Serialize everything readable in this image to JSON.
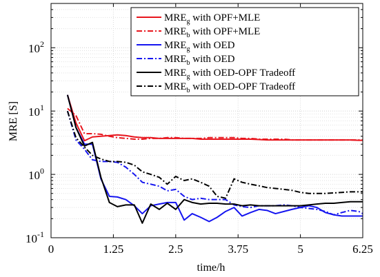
{
  "chart_data": {
    "type": "line",
    "xlabel": "time/h",
    "ylabel": "MRE [S]",
    "x_ticks": [
      0,
      1.25,
      2.5,
      3.75,
      5,
      6.25
    ],
    "x_tick_labels": [
      "0",
      "1.25",
      "2.5",
      "3.75",
      "5",
      "6.25"
    ],
    "xlim": [
      0,
      6.25
    ],
    "y_scale": "log",
    "ylim": [
      0.1,
      500
    ],
    "y_ticks": [
      {
        "base": "10",
        "exp": "-1",
        "value": 0.1
      },
      {
        "base": "10",
        "exp": "0",
        "value": 1
      },
      {
        "base": "10",
        "exp": "1",
        "value": 10
      },
      {
        "base": "10",
        "exp": "2",
        "value": 100
      }
    ],
    "grid": true,
    "legend_position": "top-right",
    "series": [
      {
        "name": "MRE_g with OPF+MLE",
        "label_main": "MRE",
        "label_sub": "g",
        "label_rest": " with OPF+MLE",
        "color": "#e8141c",
        "dash": "solid",
        "x": [
          0.33,
          0.5,
          0.67,
          0.83,
          1.0,
          1.17,
          1.33,
          1.5,
          1.67,
          1.83,
          2.0,
          2.17,
          2.33,
          2.5,
          2.67,
          2.83,
          3.0,
          3.17,
          3.33,
          3.5,
          3.67,
          3.83,
          4.0,
          4.17,
          4.33,
          4.5,
          4.67,
          4.83,
          5.0,
          5.17,
          5.33,
          5.5,
          5.67,
          5.83,
          6.0,
          6.17,
          6.25
        ],
        "y": [
          18,
          6.5,
          3.4,
          3.9,
          4.0,
          4.1,
          4.2,
          4.1,
          3.9,
          3.8,
          3.8,
          3.7,
          3.7,
          3.7,
          3.7,
          3.7,
          3.6,
          3.6,
          3.6,
          3.6,
          3.6,
          3.6,
          3.6,
          3.55,
          3.5,
          3.5,
          3.5,
          3.5,
          3.5,
          3.5,
          3.5,
          3.5,
          3.5,
          3.5,
          3.5,
          3.45,
          3.45
        ]
      },
      {
        "name": "MRE_b with OPF+MLE",
        "label_main": "MRE",
        "label_sub": "b",
        "label_rest": " with OPF+MLE",
        "color": "#e8141c",
        "dash": "dashdot",
        "x": [
          0.33,
          0.5,
          0.67,
          0.83,
          1.0,
          1.17,
          1.33,
          1.5,
          1.67,
          1.83,
          2.0,
          2.17,
          2.33,
          2.5,
          2.67,
          2.83,
          3.0,
          3.17,
          3.33,
          3.5,
          3.67,
          3.83,
          4.0,
          4.17,
          4.33,
          4.5,
          4.67,
          4.83,
          5.0,
          5.17,
          5.33,
          5.5,
          5.67,
          5.83,
          6.0,
          6.17,
          6.25
        ],
        "y": [
          11,
          8.5,
          4.4,
          4.4,
          4.3,
          4.0,
          3.8,
          3.7,
          3.6,
          3.6,
          3.7,
          3.7,
          3.8,
          3.8,
          3.7,
          3.7,
          3.7,
          3.8,
          3.8,
          3.8,
          3.8,
          3.7,
          3.7,
          3.6,
          3.6,
          3.6,
          3.6,
          3.5,
          3.5,
          3.5,
          3.5,
          3.5,
          3.5,
          3.5,
          3.5,
          3.5,
          3.5
        ]
      },
      {
        "name": "MRE_g with OED",
        "label_main": "MRE",
        "label_sub": "g",
        "label_rest": " with OED",
        "color": "#1414f0",
        "dash": "solid",
        "x": [
          0.33,
          0.5,
          0.67,
          0.83,
          1.0,
          1.17,
          1.33,
          1.5,
          1.67,
          1.83,
          2.0,
          2.17,
          2.33,
          2.5,
          2.67,
          2.83,
          3.0,
          3.17,
          3.33,
          3.5,
          3.67,
          3.83,
          4.0,
          4.17,
          4.33,
          4.5,
          4.67,
          4.83,
          5.0,
          5.17,
          5.33,
          5.5,
          5.67,
          5.83,
          6.0,
          6.17,
          6.25
        ],
        "y": [
          18,
          5.5,
          3.0,
          3.0,
          0.85,
          0.45,
          0.44,
          0.4,
          0.32,
          0.24,
          0.32,
          0.34,
          0.36,
          0.36,
          0.19,
          0.24,
          0.21,
          0.18,
          0.21,
          0.26,
          0.3,
          0.22,
          0.25,
          0.28,
          0.27,
          0.24,
          0.26,
          0.28,
          0.3,
          0.32,
          0.3,
          0.25,
          0.23,
          0.22,
          0.22,
          0.22,
          0.22
        ]
      },
      {
        "name": "MRE_b with OED",
        "label_main": "MRE",
        "label_sub": "b",
        "label_rest": " with OED",
        "color": "#1414f0",
        "dash": "dashdot",
        "x": [
          0.33,
          0.5,
          0.67,
          0.83,
          1.0,
          1.17,
          1.33,
          1.5,
          1.67,
          1.83,
          2.0,
          2.17,
          2.33,
          2.5,
          2.67,
          2.83,
          3.0,
          3.17,
          3.33,
          3.5,
          3.67,
          3.83,
          4.0,
          4.17,
          4.33,
          4.5,
          4.67,
          4.83,
          5.0,
          5.17,
          5.33,
          5.5,
          5.67,
          5.83,
          6.0,
          6.17,
          6.25
        ],
        "y": [
          10,
          3.5,
          2.5,
          1.7,
          1.6,
          1.6,
          1.55,
          1.3,
          1.0,
          0.75,
          0.7,
          0.65,
          0.55,
          0.58,
          0.45,
          0.4,
          0.42,
          0.4,
          0.4,
          0.4,
          0.33,
          0.31,
          0.3,
          0.32,
          0.32,
          0.32,
          0.33,
          0.32,
          0.3,
          0.29,
          0.28,
          0.26,
          0.23,
          0.25,
          0.27,
          0.26,
          0.24
        ]
      },
      {
        "name": "MRE_g with OED-OPF Tradeoff",
        "label_main": "MRE",
        "label_sub": "g",
        "label_rest": " with OED-OPF Tradeoff",
        "color": "#000000",
        "dash": "solid",
        "x": [
          0.33,
          0.5,
          0.67,
          0.83,
          1.0,
          1.17,
          1.33,
          1.5,
          1.67,
          1.83,
          2.0,
          2.17,
          2.33,
          2.5,
          2.67,
          2.83,
          3.0,
          3.17,
          3.33,
          3.5,
          3.67,
          3.83,
          4.0,
          4.17,
          4.33,
          4.5,
          4.67,
          4.83,
          5.0,
          5.17,
          5.33,
          5.5,
          5.67,
          5.83,
          6.0,
          6.17,
          6.25
        ],
        "y": [
          18,
          5.5,
          2.8,
          3.2,
          0.9,
          0.36,
          0.31,
          0.33,
          0.33,
          0.17,
          0.34,
          0.28,
          0.35,
          0.28,
          0.4,
          0.36,
          0.34,
          0.35,
          0.35,
          0.34,
          0.34,
          0.32,
          0.33,
          0.32,
          0.32,
          0.32,
          0.32,
          0.32,
          0.32,
          0.33,
          0.34,
          0.35,
          0.35,
          0.36,
          0.37,
          0.37,
          0.37
        ]
      },
      {
        "name": "MRE_b with OED-OPF Tradeoff",
        "label_main": "MRE",
        "label_sub": "b",
        "label_rest": " with OED-OPF Tradeoff",
        "color": "#000000",
        "dash": "dashdot",
        "x": [
          0.33,
          0.5,
          0.67,
          0.83,
          1.0,
          1.17,
          1.33,
          1.5,
          1.67,
          1.83,
          2.0,
          2.17,
          2.33,
          2.5,
          2.67,
          2.83,
          3.0,
          3.17,
          3.33,
          3.5,
          3.67,
          3.83,
          4.0,
          4.17,
          4.33,
          4.5,
          4.67,
          4.83,
          5.0,
          5.17,
          5.33,
          5.5,
          5.67,
          5.83,
          6.0,
          6.17,
          6.25
        ],
        "y": [
          10,
          3.8,
          2.7,
          2.0,
          1.75,
          1.6,
          1.6,
          1.55,
          1.4,
          1.1,
          1.0,
          0.9,
          0.7,
          0.93,
          0.8,
          0.85,
          0.75,
          0.65,
          0.45,
          0.42,
          0.85,
          0.75,
          0.7,
          0.66,
          0.62,
          0.6,
          0.58,
          0.56,
          0.52,
          0.5,
          0.5,
          0.5,
          0.51,
          0.52,
          0.53,
          0.53,
          0.53
        ]
      }
    ]
  }
}
